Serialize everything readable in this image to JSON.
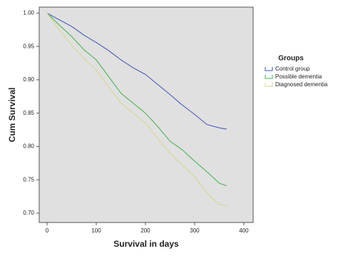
{
  "chart_data": {
    "type": "line",
    "x_label": "Survival in days",
    "y_label": "Cum Survival",
    "legend_title": "Groups",
    "legend": "right",
    "xlim": [
      -16,
      419
    ],
    "xticks": [
      0,
      100,
      200,
      300,
      400
    ],
    "ylim": [
      0.686,
      1.009
    ],
    "yticks": [
      {
        "value": 0.7,
        "label": "0.70"
      },
      {
        "value": 0.75,
        "label": "0.75"
      },
      {
        "value": 0.8,
        "label": "0.80"
      },
      {
        "value": 0.85,
        "label": "0.85"
      },
      {
        "value": 0.9,
        "label": "0.90"
      },
      {
        "value": 0.95,
        "label": "0.95"
      },
      {
        "value": 1.0,
        "label": "1.00"
      }
    ],
    "series": [
      {
        "name": "Control group",
        "color": "#3b4fb8",
        "x": [
          0,
          25,
          50,
          75,
          100,
          125,
          150,
          175,
          200,
          225,
          250,
          275,
          300,
          325,
          350,
          365
        ],
        "values": [
          1.0,
          0.99,
          0.98,
          0.967,
          0.956,
          0.944,
          0.93,
          0.918,
          0.908,
          0.893,
          0.878,
          0.862,
          0.848,
          0.833,
          0.828,
          0.826
        ]
      },
      {
        "name": "Possible dementia",
        "color": "#3cb04a",
        "x": [
          0,
          25,
          50,
          75,
          100,
          125,
          150,
          175,
          200,
          225,
          250,
          275,
          300,
          325,
          350,
          365
        ],
        "values": [
          1.0,
          0.982,
          0.965,
          0.945,
          0.93,
          0.905,
          0.88,
          0.865,
          0.85,
          0.83,
          0.808,
          0.795,
          0.778,
          0.762,
          0.745,
          0.741
        ]
      },
      {
        "name": "Diagnosed dementia",
        "color": "#d6d68c",
        "x": [
          0,
          25,
          50,
          75,
          100,
          125,
          150,
          175,
          200,
          225,
          250,
          275,
          300,
          325,
          350,
          365
        ],
        "values": [
          1.0,
          0.975,
          0.952,
          0.932,
          0.915,
          0.89,
          0.865,
          0.85,
          0.835,
          0.812,
          0.79,
          0.772,
          0.755,
          0.73,
          0.713,
          0.711
        ]
      }
    ]
  }
}
